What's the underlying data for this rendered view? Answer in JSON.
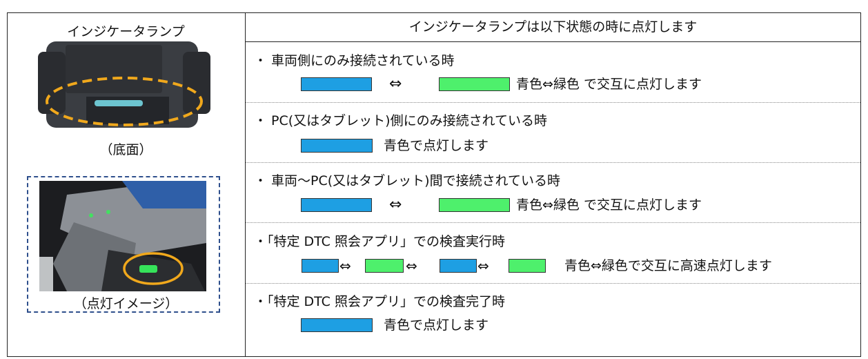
{
  "header": {
    "title": "インジケータランプは以下状態の時に点灯します"
  },
  "left": {
    "label": "インジケータランプ",
    "caption1": "（底面）",
    "caption2": "（点灯イメージ）"
  },
  "rows": [
    {
      "condition": "・ 車両側にのみ接続されている時",
      "arrows": [
        "⇔"
      ],
      "description": "青色⇔緑色  で交互に点灯します"
    },
    {
      "condition": "・ PC(又はタブレット)側にのみ接続されている時",
      "description": "青色で点灯します"
    },
    {
      "condition": "・ 車両～PC(又はタブレット)間で接続されている時",
      "arrows": [
        "⇔"
      ],
      "description": "青色⇔緑色  で交互に点灯します"
    },
    {
      "condition": "・「特定 DTC 照会アプリ」での検査実行時",
      "arrows": [
        "⇔",
        "⇔",
        "⇔"
      ],
      "description": "青色⇔緑色で交互に高速点灯します"
    },
    {
      "condition": "・「特定 DTC 照会アプリ」での検査完了時",
      "description": "青色で点灯します"
    }
  ]
}
